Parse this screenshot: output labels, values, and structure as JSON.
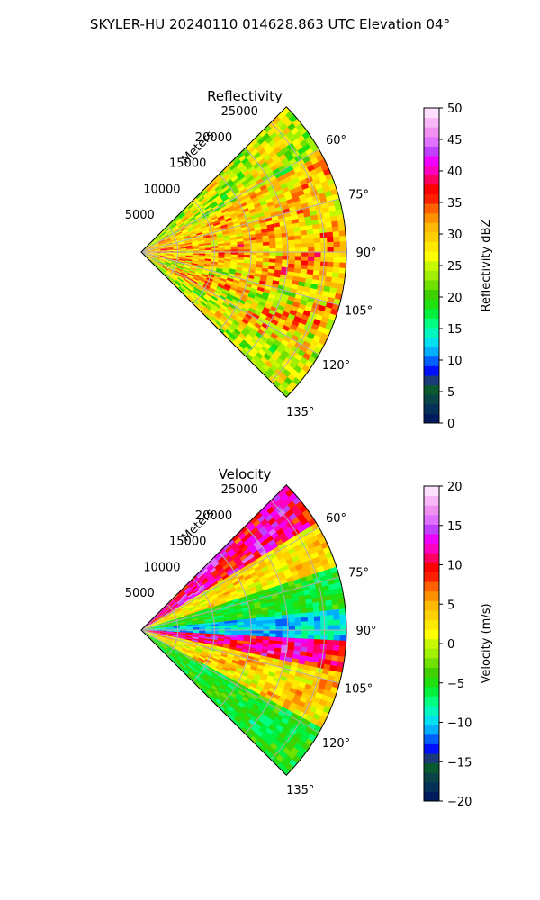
{
  "figure": {
    "suptitle": "SKYLER-HU  20240110  014628.863 UTC Elevation 04°"
  },
  "chart_data": [
    {
      "type": "heatmap",
      "title": "Reflectivity",
      "projection": "polar-sector",
      "range_label": "Meters",
      "range_ticks": [
        5000,
        10000,
        15000,
        20000,
        25000
      ],
      "range_tick_labels": [
        "5000",
        "10000",
        "15000",
        "20000",
        "25000"
      ],
      "range_max": 28000,
      "azimuth_min": 45,
      "azimuth_max": 135,
      "azimuth_ticks": [
        60,
        75,
        90,
        105,
        120,
        135
      ],
      "azimuth_tick_labels": [
        "60°",
        "75°",
        "90°",
        "105°",
        "120°",
        "135°"
      ],
      "grid": true,
      "colorbar": {
        "label": "Reflectivity dBZ",
        "min": 0,
        "max": 50,
        "ticks": [
          0,
          5,
          10,
          15,
          20,
          25,
          30,
          35,
          40,
          45,
          50
        ],
        "tick_labels": [
          "0",
          "5",
          "10",
          "15",
          "20",
          "25",
          "30",
          "35",
          "40",
          "45",
          "50"
        ],
        "colors": [
          "#001b5e",
          "#04305a",
          "#0a4448",
          "#0a5a30",
          "#1a3a7a",
          "#0010ff",
          "#0060ff",
          "#00b0ff",
          "#00e0f0",
          "#00f8c0",
          "#00ff80",
          "#00f040",
          "#20e010",
          "#40d000",
          "#70e000",
          "#a0f000",
          "#c8f800",
          "#ffff00",
          "#ffe800",
          "#ffd000",
          "#ffb800",
          "#ff9000",
          "#ff6000",
          "#ff2000",
          "#ff0000",
          "#ff0060",
          "#ff00c0",
          "#f000ff",
          "#c040ff",
          "#e070ff",
          "#f090f0",
          "#f8b8f8",
          "#ffe0ff"
        ]
      },
      "field_summary": [
        {
          "azimuth_range": [
            45,
            62
          ],
          "dominant_value_range": [
            20,
            30
          ]
        },
        {
          "azimuth_range": [
            62,
            82
          ],
          "dominant_value_range": [
            25,
            34
          ]
        },
        {
          "azimuth_range": [
            82,
            100
          ],
          "dominant_value_range": [
            26,
            36
          ]
        },
        {
          "azimuth_range": [
            100,
            125
          ],
          "dominant_value_range": [
            22,
            35
          ]
        },
        {
          "azimuth_range": [
            125,
            135
          ],
          "dominant_value_range": [
            20,
            30
          ]
        }
      ]
    },
    {
      "type": "heatmap",
      "title": "Velocity",
      "projection": "polar-sector",
      "range_label": "Meters",
      "range_ticks": [
        5000,
        10000,
        15000,
        20000,
        25000
      ],
      "range_tick_labels": [
        "5000",
        "10000",
        "15000",
        "20000",
        "25000"
      ],
      "range_max": 28000,
      "azimuth_min": 45,
      "azimuth_max": 135,
      "azimuth_ticks": [
        60,
        75,
        90,
        105,
        120,
        135
      ],
      "azimuth_tick_labels": [
        "60°",
        "75°",
        "90°",
        "105°",
        "120°",
        "135°"
      ],
      "grid": true,
      "colorbar": {
        "label": "Velocity (m/s)",
        "min": -20,
        "max": 20,
        "ticks": [
          -20,
          -15,
          -10,
          -5,
          0,
          5,
          10,
          15,
          20
        ],
        "tick_labels": [
          "−20",
          "−15",
          "−10",
          "−5",
          "0",
          "5",
          "10",
          "15",
          "20"
        ],
        "colors": [
          "#001b5e",
          "#04305a",
          "#0a4448",
          "#0a5a30",
          "#1a3a7a",
          "#0010ff",
          "#0060ff",
          "#00b0ff",
          "#00e0f0",
          "#00f8c0",
          "#00ff80",
          "#00f040",
          "#20e010",
          "#40d000",
          "#70e000",
          "#a0f000",
          "#c8f800",
          "#ffff00",
          "#ffe800",
          "#ffd000",
          "#ffb800",
          "#ff9000",
          "#ff6000",
          "#ff2000",
          "#ff0000",
          "#ff0060",
          "#ff00c0",
          "#f000ff",
          "#c040ff",
          "#e070ff",
          "#f090f0",
          "#f8b8f8",
          "#ffe0ff"
        ]
      },
      "field_summary": [
        {
          "azimuth_range": [
            45,
            58
          ],
          "dominant_value_range": [
            8,
            15
          ]
        },
        {
          "azimuth_range": [
            58,
            72
          ],
          "dominant_value_range": [
            0,
            5
          ]
        },
        {
          "azimuth_range": [
            72,
            84
          ],
          "dominant_value_range": [
            -7,
            -3
          ]
        },
        {
          "azimuth_range": [
            84,
            93
          ],
          "dominant_value_range": [
            -12,
            -8
          ]
        },
        {
          "azimuth_range": [
            93,
            102
          ],
          "dominant_value_range": [
            8,
            14
          ]
        },
        {
          "azimuth_range": [
            102,
            118
          ],
          "dominant_value_range": [
            0,
            6
          ]
        },
        {
          "azimuth_range": [
            118,
            135
          ],
          "dominant_value_range": [
            -7,
            -3
          ]
        }
      ]
    }
  ]
}
